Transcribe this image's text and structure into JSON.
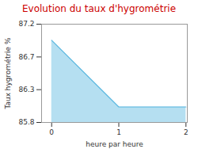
{
  "chart_data": {
    "type": "area",
    "title": "Evolution du taux d'hygrométrie",
    "x_label": "heure par heure",
    "y_label": "Taux hygrométrie %",
    "x": [
      0,
      1,
      2
    ],
    "values": [
      86.97,
      86.02,
      86.02
    ],
    "color": "#5bb8e0",
    "xlim": [
      -0.15,
      2.02
    ],
    "xticks": [
      0,
      1,
      2
    ],
    "ylim": [
      85.8,
      87.2
    ],
    "yticks": [
      85.8,
      {
        "value": 86.267,
        "label": "86.3"
      },
      {
        "value": 86.733,
        "label": "86.7"
      },
      87.2
    ],
    "grid": false
  }
}
